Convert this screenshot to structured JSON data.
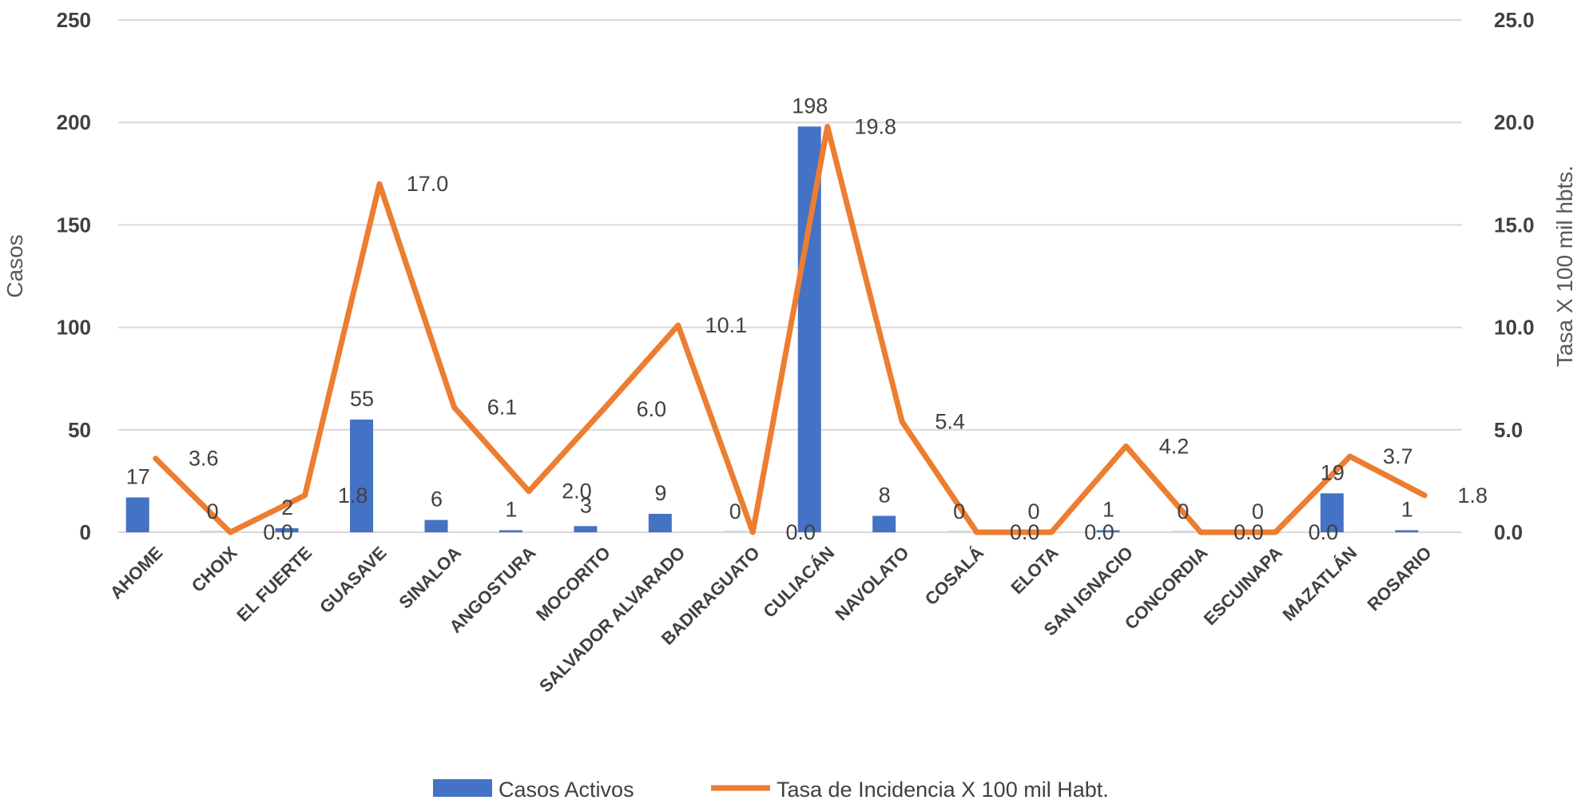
{
  "chart_data": {
    "type": "bar",
    "categories": [
      "AHOME",
      "CHOIX",
      "EL FUERTE",
      "GUASAVE",
      "SINALOA",
      "ANGOSTURA",
      "MOCORITO",
      "SALVADOR ALVARADO",
      "BADIRAGUATO",
      "CULIACÁN",
      "NAVOLATO",
      "COSALÁ",
      "ELOTA",
      "SAN IGNACIO",
      "CONCORDIA",
      "ESCUINAPA",
      "MAZATLÁN",
      "ROSARIO"
    ],
    "series": [
      {
        "name": "Casos Activos",
        "type": "bar",
        "axis": "left",
        "color": "#4472C4",
        "values": [
          17,
          0,
          2,
          55,
          6,
          1,
          3,
          9,
          0,
          198,
          8,
          0,
          0,
          1,
          0,
          0,
          19,
          1
        ],
        "labels": [
          "17",
          "0",
          "2",
          "55",
          "6",
          "1",
          "3",
          "9",
          "0",
          "198",
          "8",
          "0",
          "0",
          "1",
          "0",
          "0",
          "19",
          "1"
        ]
      },
      {
        "name": "Tasa de Incidencia X 100 mil Habt.",
        "type": "line",
        "axis": "right",
        "color": "#ED7D31",
        "values": [
          3.6,
          0.0,
          1.8,
          17.0,
          6.1,
          2.0,
          6.0,
          10.1,
          0.0,
          19.8,
          5.4,
          0.0,
          0.0,
          4.2,
          0.0,
          0.0,
          3.7,
          1.8
        ],
        "labels": [
          "3.6",
          "0.0",
          "1.8",
          "17.0",
          "6.1",
          "2.0",
          "6.0",
          "10.1",
          "0.0",
          "19.8",
          "5.4",
          "0.0",
          "0.0",
          "4.2",
          "0.0",
          "0.0",
          "3.7",
          "1.8"
        ]
      }
    ],
    "ylabel": "Casos",
    "y2label": "Tasa X 100 mil hbts.",
    "ylim": [
      0,
      250
    ],
    "y2lim": [
      0,
      25
    ],
    "yticks": [
      "0",
      "50",
      "100",
      "150",
      "200",
      "250"
    ],
    "y2ticks": [
      "0.0",
      "5.0",
      "10.0",
      "15.0",
      "20.0",
      "25.0"
    ],
    "grid": true,
    "legend_position": "bottom"
  }
}
